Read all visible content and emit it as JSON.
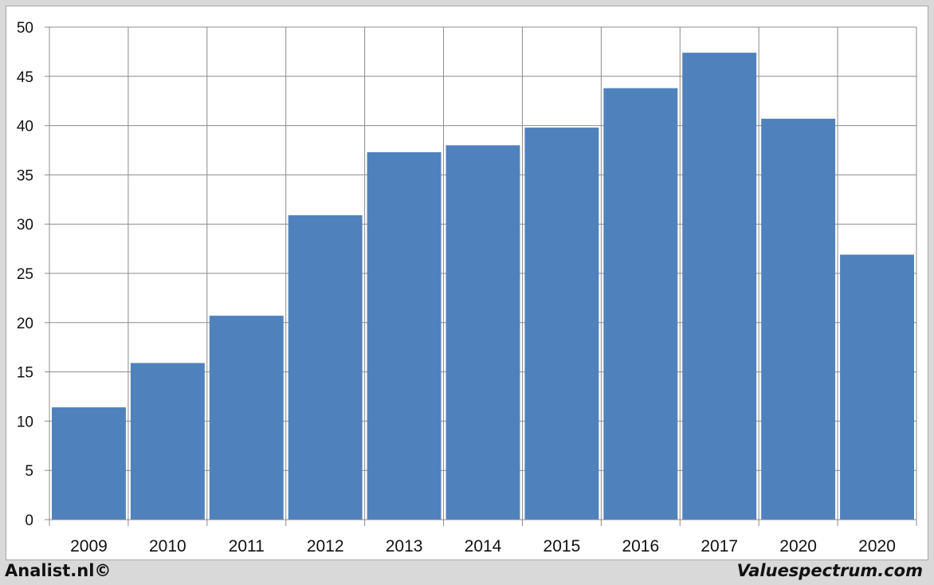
{
  "chart_data": {
    "type": "bar",
    "title": "",
    "xlabel": "",
    "ylabel": "",
    "categories": [
      "2009",
      "2010",
      "2011",
      "2012",
      "2013",
      "2014",
      "2015",
      "2016",
      "2017",
      "2020",
      "2020"
    ],
    "values": [
      11.4,
      15.9,
      20.7,
      30.9,
      37.3,
      38.0,
      39.8,
      43.8,
      47.4,
      40.7,
      26.9
    ],
    "ylim": [
      0,
      50
    ],
    "yticks": [
      0,
      5,
      10,
      15,
      20,
      25,
      30,
      35,
      40,
      45,
      50
    ],
    "grid": true,
    "bar_color": "#4f81bd",
    "legend": "none"
  },
  "footer": {
    "left": "Analist.nl©",
    "right": "Valuespectrum.com"
  }
}
